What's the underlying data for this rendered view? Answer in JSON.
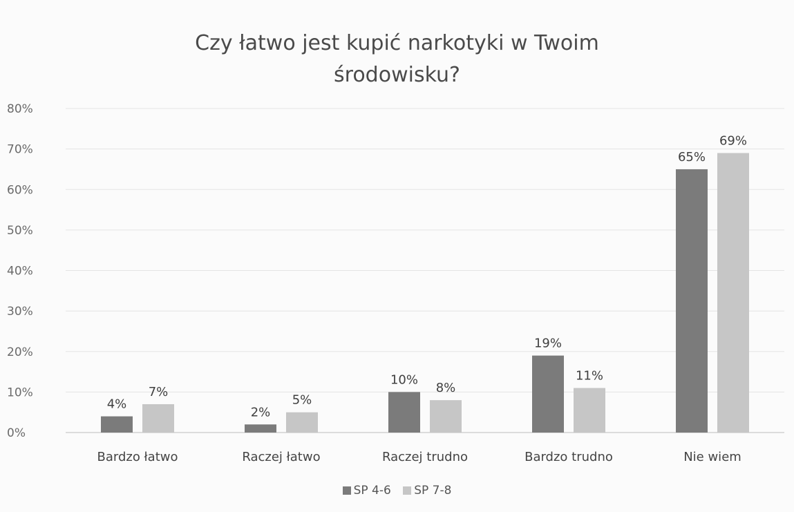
{
  "chart_data": {
    "type": "bar",
    "title_lines": [
      "Czy łatwo jest kupić narkotyki w Twoim",
      "środowisku?"
    ],
    "categories": [
      "Bardzo łatwo",
      "Raczej łatwo",
      "Raczej trudno",
      "Bardzo trudno",
      "Nie wiem"
    ],
    "series": [
      {
        "name": "SP 4-6",
        "values": [
          4,
          2,
          10,
          19,
          65
        ],
        "labels": [
          "4%",
          "2%",
          "10%",
          "19%",
          "65%"
        ],
        "color": "#7b7b7b"
      },
      {
        "name": "SP 7-8",
        "values": [
          7,
          5,
          8,
          11,
          69
        ],
        "labels": [
          "7%",
          "5%",
          "8%",
          "11%",
          "69%"
        ],
        "color": "#c6c6c6"
      }
    ],
    "y_ticks": [
      "0%",
      "10%",
      "20%",
      "30%",
      "40%",
      "50%",
      "60%",
      "70%",
      "80%"
    ],
    "ylim": [
      0,
      80
    ],
    "grid": true,
    "legend_position": "bottom"
  }
}
